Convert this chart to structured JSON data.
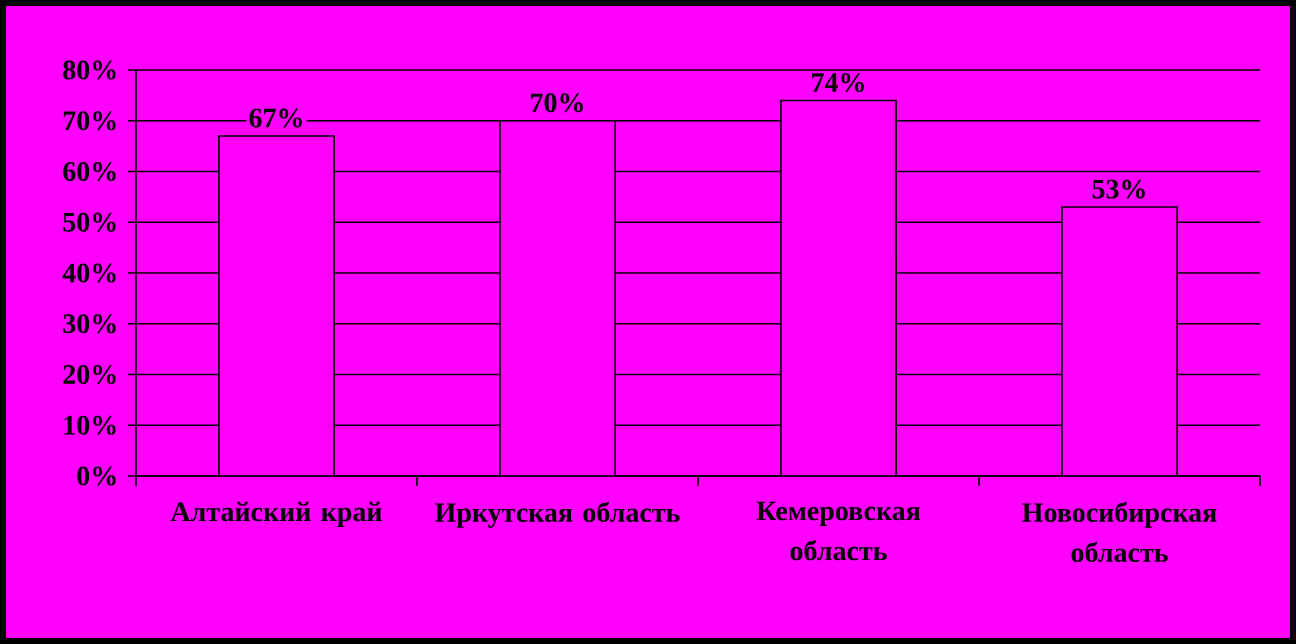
{
  "chart_data": {
    "type": "bar",
    "categories": [
      "Алтайский край",
      "Иркутская область",
      "Кемеровская область",
      "Новосибирская область"
    ],
    "values": [
      67,
      70,
      74,
      53
    ],
    "value_labels": [
      "67%",
      "70%",
      "74%",
      "53%"
    ],
    "color": "#ff00ff",
    "ylim": [
      0,
      80
    ],
    "yticks": [
      {
        "value": 0,
        "label": "0%"
      },
      {
        "value": 10,
        "label": "10%"
      },
      {
        "value": 20,
        "label": "20%"
      },
      {
        "value": 30,
        "label": "30%"
      },
      {
        "value": 40,
        "label": "40%"
      },
      {
        "value": 50,
        "label": "50%"
      },
      {
        "value": 60,
        "label": "60%"
      },
      {
        "value": 70,
        "label": "70%"
      },
      {
        "value": 80,
        "label": "80%"
      }
    ],
    "grid": "y"
  }
}
